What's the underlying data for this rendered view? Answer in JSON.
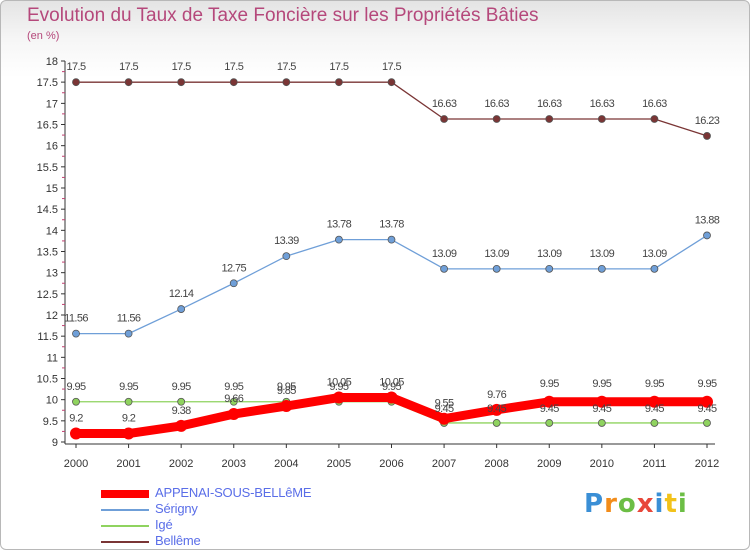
{
  "title": "Evolution du Taux de Taxe Foncière sur les Propriétés Bâties",
  "subtitle": "(en %)",
  "chart_data": {
    "type": "line",
    "title": "Evolution du Taux de Taxe Foncière sur les Propriétés Bâties",
    "ylabel": "(en %)",
    "xlabel": "",
    "x": [
      "2000",
      "2001",
      "2002",
      "2003",
      "2004",
      "2005",
      "2006",
      "2007",
      "2008",
      "2009",
      "2010",
      "2011",
      "2012"
    ],
    "ylim": [
      9,
      18
    ],
    "yticks": [
      "9",
      "9.5",
      "10",
      "10.5",
      "11",
      "11.5",
      "12",
      "12.5",
      "13",
      "13.5",
      "14",
      "14.5",
      "15",
      "15.5",
      "16",
      "16.5",
      "17",
      "17.5",
      "18"
    ],
    "grid": false,
    "legend_position": "bottom-left",
    "series": [
      {
        "name": "APPENAI-SOUS-BELLêME",
        "color": "#ff0000",
        "values": [
          9.2,
          9.2,
          9.38,
          9.66,
          9.85,
          10.05,
          10.05,
          9.55,
          9.76,
          9.95,
          9.95,
          9.95,
          9.95
        ],
        "labels": [
          "9.2",
          "9.2",
          "9.38",
          "9.66",
          "9.85",
          "10.05",
          "10.05",
          "9.55",
          "9.76",
          "9.95",
          "9.95",
          "9.95",
          "9.95"
        ]
      },
      {
        "name": "Sérigny",
        "color": "#6f9fd8",
        "values": [
          11.56,
          11.56,
          12.14,
          12.75,
          13.39,
          13.78,
          13.78,
          13.09,
          13.09,
          13.09,
          13.09,
          13.09,
          13.88
        ],
        "labels": [
          "11.56",
          "11.56",
          "12.14",
          "12.75",
          "13.39",
          "13.78",
          "13.78",
          "13.09",
          "13.09",
          "13.09",
          "13.09",
          "13.09",
          "13.88"
        ]
      },
      {
        "name": "Igé",
        "color": "#8fd35f",
        "values": [
          9.95,
          9.95,
          9.95,
          9.95,
          9.95,
          9.95,
          9.95,
          9.45,
          9.45,
          9.45,
          9.45,
          9.45,
          9.45
        ],
        "labels": [
          "9.95",
          "9.95",
          "9.95",
          "9.95",
          "9.95",
          "9.95",
          "9.95",
          "9.45",
          "9.45",
          "9.45",
          "9.45",
          "9.45",
          "9.45"
        ]
      },
      {
        "name": "Bellême",
        "color": "#7a3535",
        "values": [
          17.5,
          17.5,
          17.5,
          17.5,
          17.5,
          17.5,
          17.5,
          16.63,
          16.63,
          16.63,
          16.63,
          16.63,
          16.23
        ],
        "labels": [
          "17.5",
          "17.5",
          "17.5",
          "17.5",
          "17.5",
          "17.5",
          "17.5",
          "16.63",
          "16.63",
          "16.63",
          "16.63",
          "16.63",
          "16.23"
        ]
      }
    ]
  },
  "legend": {
    "items": [
      {
        "label": "APPENAI-SOUS-BELLêME",
        "color": "#ff0000"
      },
      {
        "label": "Sérigny",
        "color": "#6f9fd8"
      },
      {
        "label": "Igé",
        "color": "#8fd35f"
      },
      {
        "label": "Bellême",
        "color": "#7a3535"
      }
    ]
  },
  "logo": {
    "letters": [
      "P",
      "r",
      "o",
      "x",
      "i",
      "t",
      "i"
    ],
    "colors": [
      "#3a8fd6",
      "#f28c1a",
      "#6cbe45",
      "#e8473a",
      "#3a8fd6",
      "#f2c21a",
      "#6cbe45"
    ]
  }
}
